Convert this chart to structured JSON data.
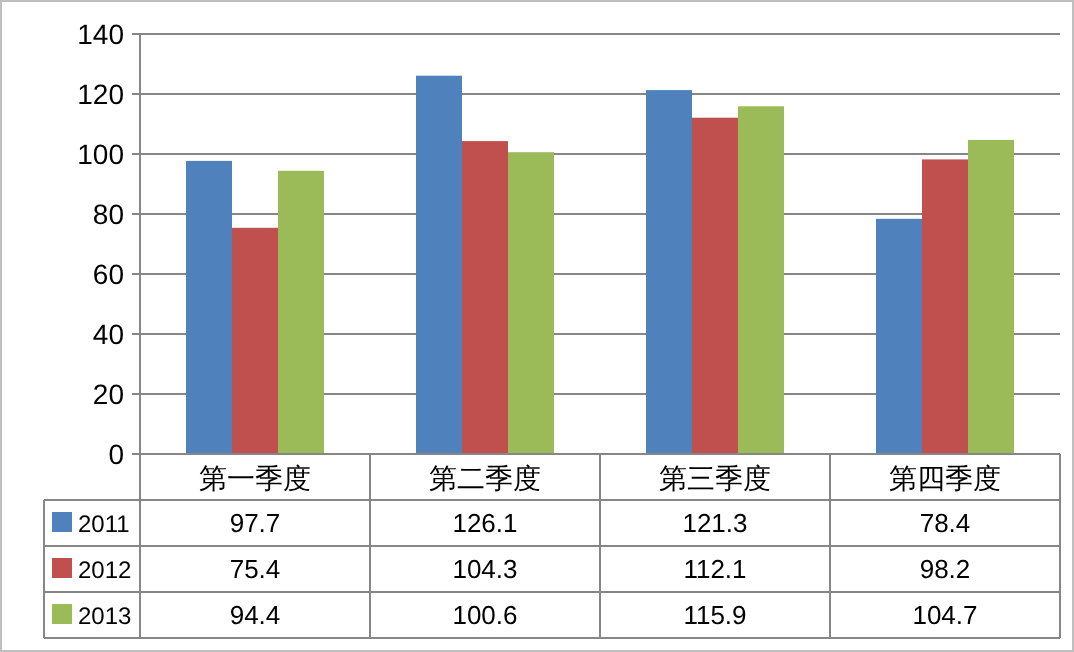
{
  "chart_data": {
    "type": "bar",
    "categories": [
      "第一季度",
      "第二季度",
      "第三季度",
      "第四季度"
    ],
    "series": [
      {
        "name": "2011",
        "color": "#4f81bd",
        "values": [
          97.7,
          126.1,
          121.3,
          78.4
        ]
      },
      {
        "name": "2012",
        "color": "#c0504d",
        "values": [
          75.4,
          104.3,
          112.1,
          98.2
        ]
      },
      {
        "name": "2013",
        "color": "#9bbb59",
        "values": [
          94.4,
          100.6,
          115.9,
          104.7
        ]
      }
    ],
    "ylim": [
      0,
      140
    ],
    "yticks": [
      0,
      20,
      40,
      60,
      80,
      100,
      120,
      140
    ],
    "grid": "y",
    "legend": "bottom",
    "data_labels": true
  }
}
